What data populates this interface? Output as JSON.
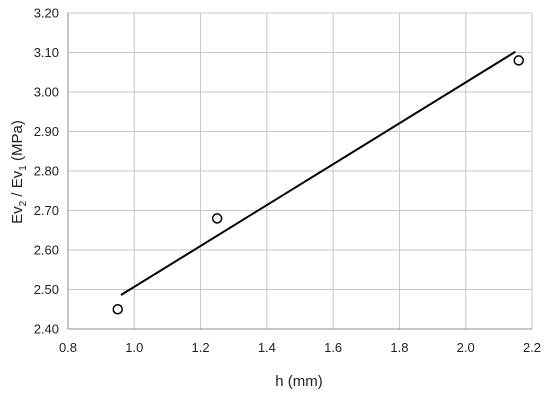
{
  "chart_data": {
    "type": "scatter",
    "title": "",
    "xlabel": "h (mm)",
    "ylabel": {
      "part1": "Ev",
      "sub1": "2",
      "part2": " / Ev",
      "sub2": "1",
      "part3": " (MPa)"
    },
    "xlim": [
      0.8,
      2.2
    ],
    "ylim": [
      2.4,
      3.2
    ],
    "xticks": [
      "0.8",
      "1.0",
      "1.2",
      "1.4",
      "1.6",
      "1.8",
      "2.0",
      "2.2"
    ],
    "yticks": [
      "2.40",
      "2.50",
      "2.60",
      "2.70",
      "2.80",
      "2.90",
      "3.00",
      "3.10",
      "3.20"
    ],
    "grid": true,
    "series": [
      {
        "points": [
          {
            "x": 0.95,
            "y": 2.45
          },
          {
            "x": 1.25,
            "y": 2.68
          },
          {
            "x": 2.16,
            "y": 3.08
          }
        ]
      }
    ],
    "trendline": {
      "x": [
        0.96,
        2.15
      ],
      "y": [
        2.486,
        3.102
      ]
    },
    "colors": {
      "grid": "#c8c8c8",
      "line": "#000000",
      "marker_stroke": "#000000",
      "marker_fill": "#ffffff"
    }
  }
}
